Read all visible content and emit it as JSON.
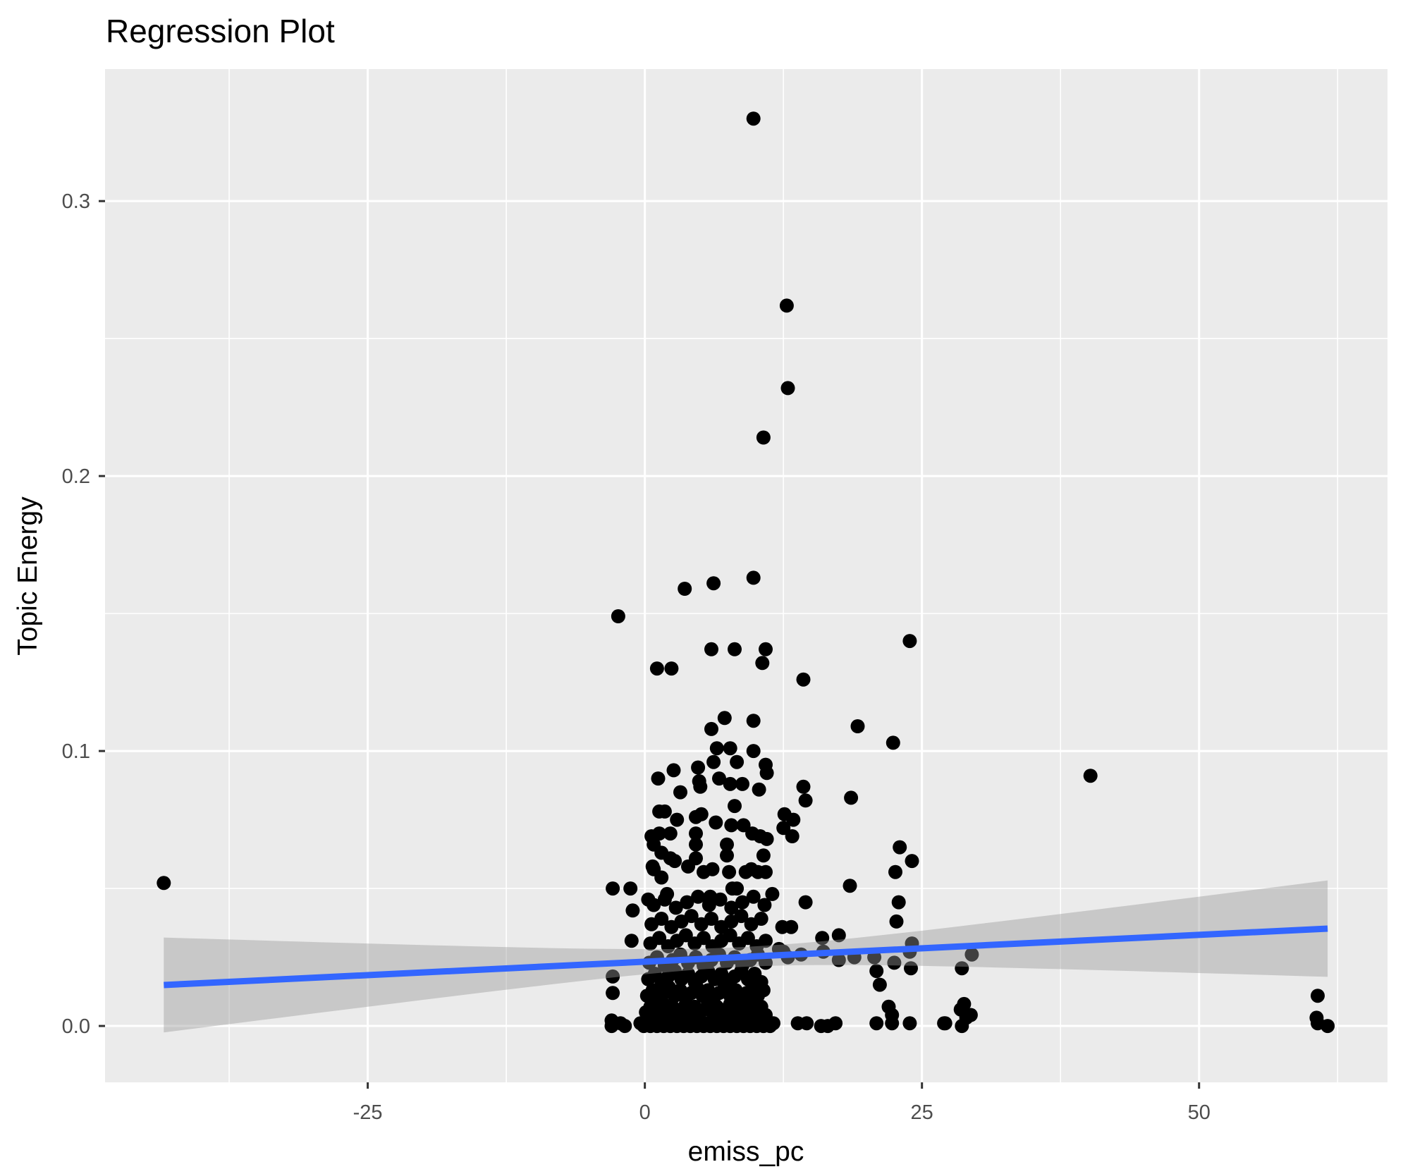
{
  "chart_data": {
    "type": "scatter",
    "title": "Regression Plot",
    "xlabel": "emiss_pc",
    "ylabel": "Topic Energy",
    "x_range": [
      -48.7,
      67.0
    ],
    "y_range": [
      -0.0205,
      0.348
    ],
    "x_ticks": [
      {
        "value": -25,
        "label": "-25"
      },
      {
        "value": 0,
        "label": "0"
      },
      {
        "value": 25,
        "label": "25"
      },
      {
        "value": 50,
        "label": "50"
      }
    ],
    "y_ticks": [
      {
        "value": 0.0,
        "label": "0.0"
      },
      {
        "value": 0.1,
        "label": "0.1"
      },
      {
        "value": 0.2,
        "label": "0.2"
      },
      {
        "value": 0.3,
        "label": "0.3"
      }
    ],
    "x_minor": [
      -37.5,
      -12.5,
      12.5,
      37.5,
      62.5
    ],
    "y_minor": [
      0.05,
      0.15,
      0.25
    ],
    "grid": true,
    "legend": "none",
    "colors": {
      "panel_bg": "#EBEBEB",
      "grid": "#FFFFFF",
      "point": "#000000",
      "line": "#3366FF",
      "band": "#999999",
      "band_opacity": 0.42,
      "tick_label": "#4D4D4D",
      "tick_mark": "#333333",
      "text": "#000000"
    },
    "regression": {
      "x0": -43.4,
      "y0": 0.0149,
      "x1": 61.6,
      "y1": 0.0354,
      "band_center_x": 8.65,
      "band_half_width_min": 0.0036,
      "band_spread": 11.1
    },
    "points": [
      [
        9.8,
        0.33
      ],
      [
        12.8,
        0.262
      ],
      [
        12.9,
        0.232
      ],
      [
        10.7,
        0.214
      ],
      [
        -2.4,
        0.149
      ],
      [
        3.6,
        0.159
      ],
      [
        6.2,
        0.161
      ],
      [
        9.8,
        0.163
      ],
      [
        6.0,
        0.137
      ],
      [
        8.1,
        0.137
      ],
      [
        10.9,
        0.137
      ],
      [
        10.6,
        0.132
      ],
      [
        1.1,
        0.13
      ],
      [
        2.4,
        0.13
      ],
      [
        14.3,
        0.126
      ],
      [
        23.9,
        0.14
      ],
      [
        7.2,
        0.112
      ],
      [
        9.8,
        0.111
      ],
      [
        6.0,
        0.108
      ],
      [
        6.5,
        0.101
      ],
      [
        7.7,
        0.101
      ],
      [
        9.8,
        0.1
      ],
      [
        19.2,
        0.109
      ],
      [
        22.4,
        0.103
      ],
      [
        40.2,
        0.091
      ],
      [
        8.3,
        0.096
      ],
      [
        6.2,
        0.096
      ],
      [
        10.9,
        0.095
      ],
      [
        11.0,
        0.092
      ],
      [
        2.6,
        0.093
      ],
      [
        4.8,
        0.094
      ],
      [
        4.9,
        0.089
      ],
      [
        5.0,
        0.087
      ],
      [
        1.2,
        0.09
      ],
      [
        6.7,
        0.09
      ],
      [
        7.7,
        0.088
      ],
      [
        8.8,
        0.088
      ],
      [
        3.2,
        0.085
      ],
      [
        10.3,
        0.086
      ],
      [
        14.3,
        0.087
      ],
      [
        14.5,
        0.082
      ],
      [
        18.6,
        0.083
      ],
      [
        1.3,
        0.078
      ],
      [
        1.8,
        0.078
      ],
      [
        4.6,
        0.076
      ],
      [
        5.1,
        0.077
      ],
      [
        8.1,
        0.08
      ],
      [
        12.6,
        0.077
      ],
      [
        13.4,
        0.075
      ],
      [
        6.4,
        0.074
      ],
      [
        7.8,
        0.073
      ],
      [
        8.9,
        0.073
      ],
      [
        2.9,
        0.075
      ],
      [
        12.5,
        0.072
      ],
      [
        0.6,
        0.069
      ],
      [
        1.3,
        0.07
      ],
      [
        2.3,
        0.07
      ],
      [
        4.6,
        0.07
      ],
      [
        13.3,
        0.069
      ],
      [
        9.7,
        0.07
      ],
      [
        10.4,
        0.069
      ],
      [
        11.0,
        0.068
      ],
      [
        4.6,
        0.066
      ],
      [
        7.4,
        0.066
      ],
      [
        7.4,
        0.062
      ],
      [
        10.7,
        0.062
      ],
      [
        0.8,
        0.066
      ],
      [
        1.5,
        0.063
      ],
      [
        2.3,
        0.061
      ],
      [
        2.7,
        0.06
      ],
      [
        4.6,
        0.061
      ],
      [
        23.0,
        0.065
      ],
      [
        24.1,
        0.06
      ],
      [
        0.7,
        0.058
      ],
      [
        0.8,
        0.057
      ],
      [
        5.3,
        0.056
      ],
      [
        7.6,
        0.056
      ],
      [
        9.1,
        0.056
      ],
      [
        9.6,
        0.057
      ],
      [
        10.2,
        0.056
      ],
      [
        10.9,
        0.056
      ],
      [
        1.5,
        0.054
      ],
      [
        22.6,
        0.056
      ],
      [
        -43.4,
        0.052
      ],
      [
        3.9,
        0.058
      ],
      [
        6.1,
        0.057
      ],
      [
        8.3,
        0.05
      ],
      [
        -2.9,
        0.05
      ],
      [
        -1.3,
        0.05
      ],
      [
        7.9,
        0.05
      ],
      [
        18.5,
        0.051
      ],
      [
        22.9,
        0.045
      ],
      [
        14.5,
        0.045
      ],
      [
        2.0,
        0.048
      ],
      [
        5.9,
        0.047
      ],
      [
        0.3,
        0.046
      ],
      [
        11.5,
        0.048
      ],
      [
        -1.1,
        0.042
      ],
      [
        22.7,
        0.038
      ],
      [
        12.4,
        0.036
      ],
      [
        13.2,
        0.036
      ],
      [
        16.0,
        0.032
      ],
      [
        17.5,
        0.033
      ],
      [
        24.1,
        0.03
      ],
      [
        -1.2,
        0.031
      ],
      [
        12.1,
        0.028
      ],
      [
        12.5,
        0.027
      ],
      [
        12.9,
        0.025
      ],
      [
        14.1,
        0.026
      ],
      [
        16.1,
        0.027
      ],
      [
        22.5,
        0.023
      ],
      [
        24.0,
        0.021
      ],
      [
        28.6,
        0.021
      ],
      [
        29.5,
        0.026
      ],
      [
        20.9,
        0.02
      ],
      [
        17.5,
        0.024
      ],
      [
        18.9,
        0.025
      ],
      [
        20.7,
        0.025
      ],
      [
        23.9,
        0.027
      ],
      [
        21.2,
        0.015
      ],
      [
        -2.9,
        0.018
      ],
      [
        -2.9,
        0.012
      ],
      [
        60.7,
        0.011
      ],
      [
        28.8,
        0.008
      ],
      [
        28.5,
        0.006
      ],
      [
        29.4,
        0.004
      ],
      [
        29.0,
        0.003
      ],
      [
        28.6,
        0.0
      ],
      [
        27.0,
        0.001
      ],
      [
        22.0,
        0.007
      ],
      [
        22.3,
        0.004
      ],
      [
        20.9,
        0.001
      ],
      [
        22.3,
        0.001
      ],
      [
        23.9,
        0.001
      ],
      [
        27.1,
        0.001
      ],
      [
        60.6,
        0.003
      ],
      [
        60.7,
        0.001
      ],
      [
        61.6,
        0.0
      ],
      [
        13.8,
        0.001
      ],
      [
        14.6,
        0.001
      ],
      [
        15.9,
        0.0
      ],
      [
        17.2,
        0.001
      ],
      [
        16.5,
        0.0
      ],
      [
        -3.0,
        0.002
      ],
      [
        -3.0,
        0.0
      ],
      [
        -1.8,
        0.0
      ],
      [
        -2.2,
        0.001
      ],
      [
        -0.4,
        0.001
      ],
      [
        -0.1,
        0.0
      ],
      [
        0.2,
        0.002
      ],
      [
        0.5,
        0.0
      ],
      [
        0.8,
        0.001
      ],
      [
        1.1,
        0.0
      ],
      [
        1.4,
        0.002
      ],
      [
        1.7,
        0.0
      ],
      [
        2.0,
        0.001
      ],
      [
        2.3,
        0.0
      ],
      [
        2.6,
        0.002
      ],
      [
        2.9,
        0.0
      ],
      [
        3.2,
        0.001
      ],
      [
        3.5,
        0.0
      ],
      [
        3.8,
        0.002
      ],
      [
        4.1,
        0.0
      ],
      [
        4.4,
        0.001
      ],
      [
        4.7,
        0.0
      ],
      [
        5.0,
        0.002
      ],
      [
        5.3,
        0.0
      ],
      [
        5.6,
        0.001
      ],
      [
        5.9,
        0.0
      ],
      [
        6.2,
        0.002
      ],
      [
        6.5,
        0.0
      ],
      [
        6.8,
        0.001
      ],
      [
        7.1,
        0.0
      ],
      [
        7.4,
        0.002
      ],
      [
        7.7,
        0.0
      ],
      [
        8.0,
        0.001
      ],
      [
        8.3,
        0.0
      ],
      [
        8.6,
        0.002
      ],
      [
        8.9,
        0.0
      ],
      [
        9.2,
        0.001
      ],
      [
        9.5,
        0.0
      ],
      [
        9.8,
        0.002
      ],
      [
        10.1,
        0.0
      ],
      [
        10.4,
        0.001
      ],
      [
        10.7,
        0.0
      ],
      [
        11.0,
        0.002
      ],
      [
        11.3,
        0.0
      ],
      [
        11.6,
        0.001
      ],
      [
        0.1,
        0.005
      ],
      [
        0.5,
        0.007
      ],
      [
        0.9,
        0.004
      ],
      [
        1.3,
        0.006
      ],
      [
        1.7,
        0.008
      ],
      [
        2.1,
        0.005
      ],
      [
        2.5,
        0.007
      ],
      [
        2.9,
        0.004
      ],
      [
        3.3,
        0.006
      ],
      [
        3.7,
        0.008
      ],
      [
        4.1,
        0.005
      ],
      [
        4.5,
        0.007
      ],
      [
        4.9,
        0.004
      ],
      [
        5.3,
        0.006
      ],
      [
        5.7,
        0.008
      ],
      [
        6.1,
        0.005
      ],
      [
        6.5,
        0.007
      ],
      [
        6.9,
        0.004
      ],
      [
        7.3,
        0.006
      ],
      [
        7.7,
        0.008
      ],
      [
        8.1,
        0.005
      ],
      [
        8.5,
        0.007
      ],
      [
        8.9,
        0.004
      ],
      [
        9.3,
        0.006
      ],
      [
        9.7,
        0.008
      ],
      [
        10.1,
        0.005
      ],
      [
        10.5,
        0.007
      ],
      [
        10.9,
        0.004
      ],
      [
        0.2,
        0.011
      ],
      [
        0.7,
        0.013
      ],
      [
        1.2,
        0.01
      ],
      [
        1.7,
        0.012
      ],
      [
        2.2,
        0.014
      ],
      [
        2.7,
        0.011
      ],
      [
        3.2,
        0.013
      ],
      [
        3.7,
        0.01
      ],
      [
        4.2,
        0.012
      ],
      [
        4.7,
        0.014
      ],
      [
        5.2,
        0.011
      ],
      [
        5.7,
        0.013
      ],
      [
        6.2,
        0.01
      ],
      [
        6.7,
        0.012
      ],
      [
        7.2,
        0.014
      ],
      [
        7.7,
        0.011
      ],
      [
        8.2,
        0.013
      ],
      [
        8.7,
        0.01
      ],
      [
        9.2,
        0.012
      ],
      [
        9.7,
        0.014
      ],
      [
        10.2,
        0.011
      ],
      [
        10.7,
        0.013
      ],
      [
        0.3,
        0.017
      ],
      [
        0.9,
        0.019
      ],
      [
        1.5,
        0.016
      ],
      [
        2.1,
        0.018
      ],
      [
        2.7,
        0.02
      ],
      [
        3.3,
        0.017
      ],
      [
        3.9,
        0.019
      ],
      [
        4.5,
        0.016
      ],
      [
        5.1,
        0.018
      ],
      [
        5.7,
        0.02
      ],
      [
        6.3,
        0.017
      ],
      [
        6.9,
        0.019
      ],
      [
        7.5,
        0.016
      ],
      [
        8.1,
        0.018
      ],
      [
        8.7,
        0.02
      ],
      [
        9.3,
        0.017
      ],
      [
        9.9,
        0.019
      ],
      [
        10.5,
        0.016
      ],
      [
        0.4,
        0.023
      ],
      [
        1.1,
        0.025
      ],
      [
        1.8,
        0.022
      ],
      [
        2.5,
        0.024
      ],
      [
        3.2,
        0.026
      ],
      [
        3.9,
        0.023
      ],
      [
        4.6,
        0.025
      ],
      [
        5.3,
        0.022
      ],
      [
        6.0,
        0.024
      ],
      [
        6.7,
        0.026
      ],
      [
        7.4,
        0.023
      ],
      [
        8.1,
        0.025
      ],
      [
        8.8,
        0.022
      ],
      [
        9.5,
        0.024
      ],
      [
        10.2,
        0.026
      ],
      [
        10.9,
        0.023
      ],
      [
        0.5,
        0.03
      ],
      [
        1.3,
        0.032
      ],
      [
        2.1,
        0.029
      ],
      [
        2.9,
        0.031
      ],
      [
        3.7,
        0.033
      ],
      [
        4.5,
        0.03
      ],
      [
        5.3,
        0.032
      ],
      [
        6.1,
        0.029
      ],
      [
        6.9,
        0.031
      ],
      [
        7.7,
        0.033
      ],
      [
        8.5,
        0.03
      ],
      [
        9.3,
        0.032
      ],
      [
        10.1,
        0.029
      ],
      [
        10.9,
        0.031
      ],
      [
        0.6,
        0.037
      ],
      [
        1.5,
        0.039
      ],
      [
        2.4,
        0.036
      ],
      [
        3.3,
        0.038
      ],
      [
        4.2,
        0.04
      ],
      [
        5.1,
        0.037
      ],
      [
        6.0,
        0.039
      ],
      [
        6.9,
        0.036
      ],
      [
        7.8,
        0.038
      ],
      [
        8.7,
        0.04
      ],
      [
        9.6,
        0.037
      ],
      [
        10.5,
        0.039
      ],
      [
        0.8,
        0.044
      ],
      [
        1.8,
        0.046
      ],
      [
        2.8,
        0.043
      ],
      [
        3.8,
        0.045
      ],
      [
        4.8,
        0.047
      ],
      [
        5.8,
        0.044
      ],
      [
        6.8,
        0.046
      ],
      [
        7.8,
        0.043
      ],
      [
        8.8,
        0.045
      ],
      [
        9.8,
        0.047
      ],
      [
        10.8,
        0.044
      ]
    ]
  }
}
